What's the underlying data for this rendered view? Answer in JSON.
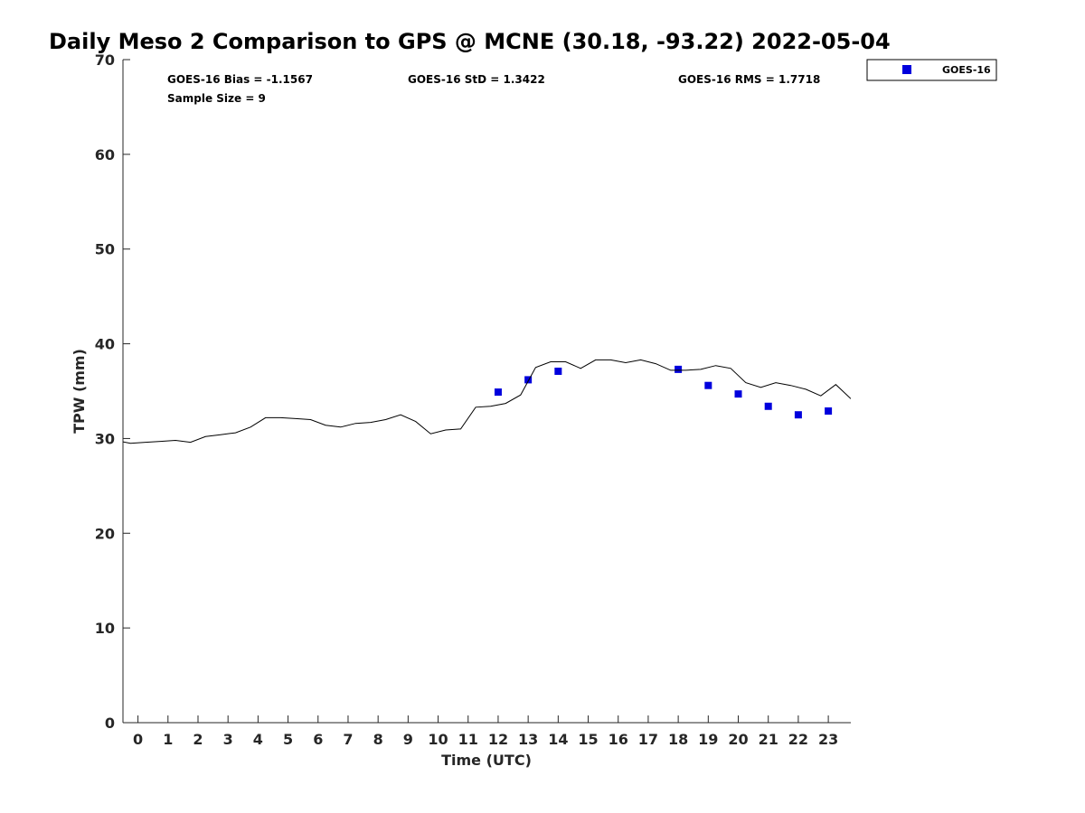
{
  "chart_data": {
    "type": "scatter",
    "title": "Daily Meso 2 Comparison to GPS @ MCNE (30.18, -93.22) 2022-05-04",
    "xlabel": "Time (UTC)",
    "ylabel": "TPW (mm)",
    "xlim": [
      -0.5,
      23.75
    ],
    "ylim": [
      0,
      70
    ],
    "x_ticks": [
      0,
      1,
      2,
      3,
      4,
      5,
      6,
      7,
      8,
      9,
      10,
      11,
      12,
      13,
      14,
      15,
      16,
      17,
      18,
      19,
      20,
      21,
      22,
      23
    ],
    "y_ticks": [
      0,
      10,
      20,
      30,
      40,
      50,
      60,
      70
    ],
    "grid": false,
    "legend_position": "top-right, outside plot",
    "stats": {
      "bias": "GOES-16 Bias = -1.1567",
      "std": "GOES-16 StD = 1.3422",
      "rms": "GOES-16 RMS = 1.7718",
      "sample": "Sample Size = 9"
    },
    "series": [
      {
        "name": "GOES-16",
        "style": "square-markers",
        "color": "#0000dd",
        "x": [
          12,
          13,
          14,
          18,
          19,
          20,
          21,
          22,
          23
        ],
        "y": [
          34.9,
          36.2,
          37.1,
          37.3,
          35.6,
          34.7,
          33.4,
          32.5,
          32.9
        ]
      },
      {
        "style": "line",
        "color": "#000000",
        "x": [
          -0.75,
          -0.25,
          0.25,
          0.75,
          1.25,
          1.75,
          2.25,
          2.75,
          3.25,
          3.75,
          4.25,
          4.75,
          5.25,
          5.75,
          6.25,
          6.75,
          7.25,
          7.75,
          8.25,
          8.75,
          9.25,
          9.75,
          10.25,
          10.75,
          11.25,
          11.75,
          12.25,
          12.75,
          13.25,
          13.75,
          14.25,
          14.75,
          15.25,
          15.75,
          16.25,
          16.75,
          17.25,
          17.75,
          18.25,
          18.75,
          19.25,
          19.75,
          20.25,
          20.75,
          21.25,
          21.75,
          22.25,
          22.75,
          23.25,
          23.75
        ],
        "y": [
          29.8,
          29.5,
          29.6,
          29.7,
          29.8,
          29.6,
          30.2,
          30.4,
          30.6,
          31.2,
          32.2,
          32.2,
          32.1,
          32.0,
          31.4,
          31.2,
          31.6,
          31.7,
          32.0,
          32.5,
          31.8,
          30.5,
          30.9,
          31.0,
          33.3,
          33.4,
          33.7,
          34.6,
          37.5,
          38.1,
          38.1,
          37.4,
          38.3,
          38.3,
          38.0,
          38.3,
          37.9,
          37.2,
          37.2,
          37.3,
          37.7,
          37.4,
          35.9,
          35.4,
          35.9,
          35.6,
          35.2,
          34.5,
          35.7,
          34.2
        ]
      }
    ]
  },
  "legend": {
    "label": "GOES-16",
    "marker_color": "#0000dd"
  }
}
